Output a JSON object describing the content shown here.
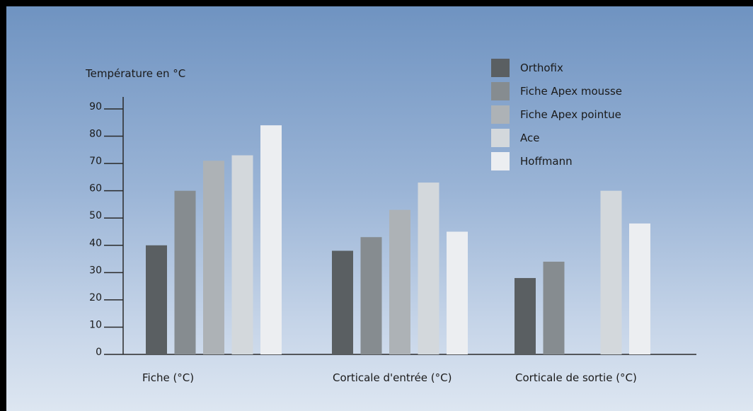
{
  "chart_data": {
    "type": "bar",
    "ylabel": "Température en °C",
    "ylim": [
      0,
      90
    ],
    "yticks": [
      0,
      10,
      20,
      30,
      40,
      50,
      60,
      70,
      80,
      90
    ],
    "ytick_labels": [
      "0",
      "10",
      "20",
      "30",
      "40",
      "50",
      "60",
      "70",
      "80",
      "90"
    ],
    "categories": [
      "Fiche (°C)",
      "Corticale d'entrée (°C)",
      "Corticale de sortie (°C)"
    ],
    "legend_position": "top-right",
    "grid": false,
    "series": [
      {
        "name": "Orthofix",
        "color": "#5a5f62",
        "values": [
          40,
          38,
          28
        ]
      },
      {
        "name": "Fiche Apex mousse",
        "color": "#868c90",
        "values": [
          60,
          43,
          34
        ]
      },
      {
        "name": "Fiche Apex pointue",
        "color": "#adb2b6",
        "values": [
          71,
          53,
          null
        ]
      },
      {
        "name": "Ace",
        "color": "#d3d8dc",
        "values": [
          73,
          63,
          60
        ]
      },
      {
        "name": "Hoffmann",
        "color": "#eceef1",
        "values": [
          84,
          45,
          48
        ]
      }
    ]
  }
}
